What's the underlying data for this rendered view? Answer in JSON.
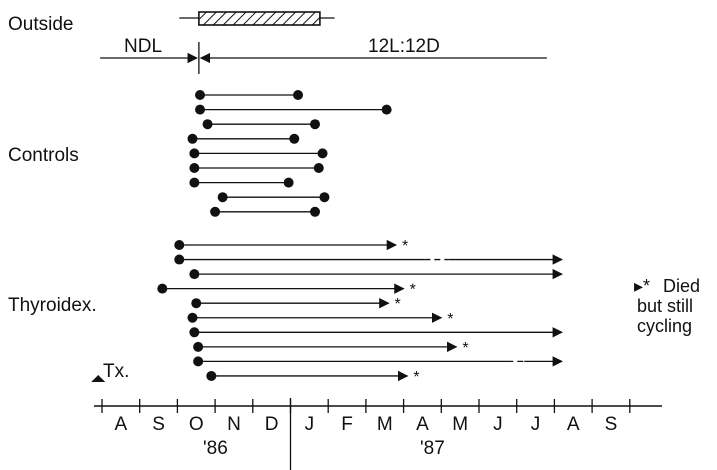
{
  "labels": {
    "outside": "Outside",
    "ndl": "NDL",
    "photoperiod": "12L:12D",
    "controls": "Controls",
    "thyroidex": "Thyroidex.",
    "tx": "Tx.",
    "note_symbol": "▸*",
    "note_line1": "Died",
    "note_line2": "but still",
    "note_line3": "cycling",
    "asterisk": "*"
  },
  "months": [
    "A",
    "S",
    "O",
    "N",
    "D",
    "J",
    "F",
    "M",
    "A",
    "M",
    "J",
    "J",
    "A",
    "S"
  ],
  "years": [
    "'86",
    "'87"
  ],
  "outside": {
    "transfer_month": 2.57,
    "hatched_bar": [
      2.57,
      5.78
    ],
    "line_extent": [
      2.05,
      6.17
    ],
    "ndl_arrow": [
      -0.05,
      2.57
    ],
    "ld_arrow_end": 11.8
  },
  "controls": [
    {
      "start": 2.6,
      "end": 5.2
    },
    {
      "start": 2.6,
      "end": 7.55
    },
    {
      "start": 2.8,
      "end": 5.65
    },
    {
      "start": 2.4,
      "end": 5.1
    },
    {
      "start": 2.45,
      "end": 5.85
    },
    {
      "start": 2.45,
      "end": 5.75
    },
    {
      "start": 2.45,
      "end": 4.95
    },
    {
      "start": 3.2,
      "end": 5.9
    },
    {
      "start": 3.0,
      "end": 5.65
    }
  ],
  "thyroidectomized": [
    {
      "start": 2.05,
      "end": 7.8,
      "died": true,
      "dashed": null
    },
    {
      "start": 2.05,
      "end": 12.2,
      "died": false,
      "dashed": [
        8.55,
        9.2
      ]
    },
    {
      "start": 2.45,
      "end": 12.2,
      "died": false,
      "dashed": null
    },
    {
      "start": 1.6,
      "end": 8.0,
      "died": true,
      "dashed": null
    },
    {
      "start": 2.5,
      "end": 7.6,
      "died": true,
      "dashed": null
    },
    {
      "start": 2.4,
      "end": 9.0,
      "died": true,
      "dashed": null
    },
    {
      "start": 2.45,
      "end": 12.2,
      "died": false,
      "dashed": null
    },
    {
      "start": 2.55,
      "end": 9.4,
      "died": true,
      "dashed": null
    },
    {
      "start": 2.55,
      "end": 12.2,
      "died": false,
      "dashed": [
        10.75,
        11.2
      ]
    },
    {
      "start": 2.9,
      "end": 8.1,
      "died": true,
      "dashed": null
    }
  ],
  "tx_month": -0.1
}
